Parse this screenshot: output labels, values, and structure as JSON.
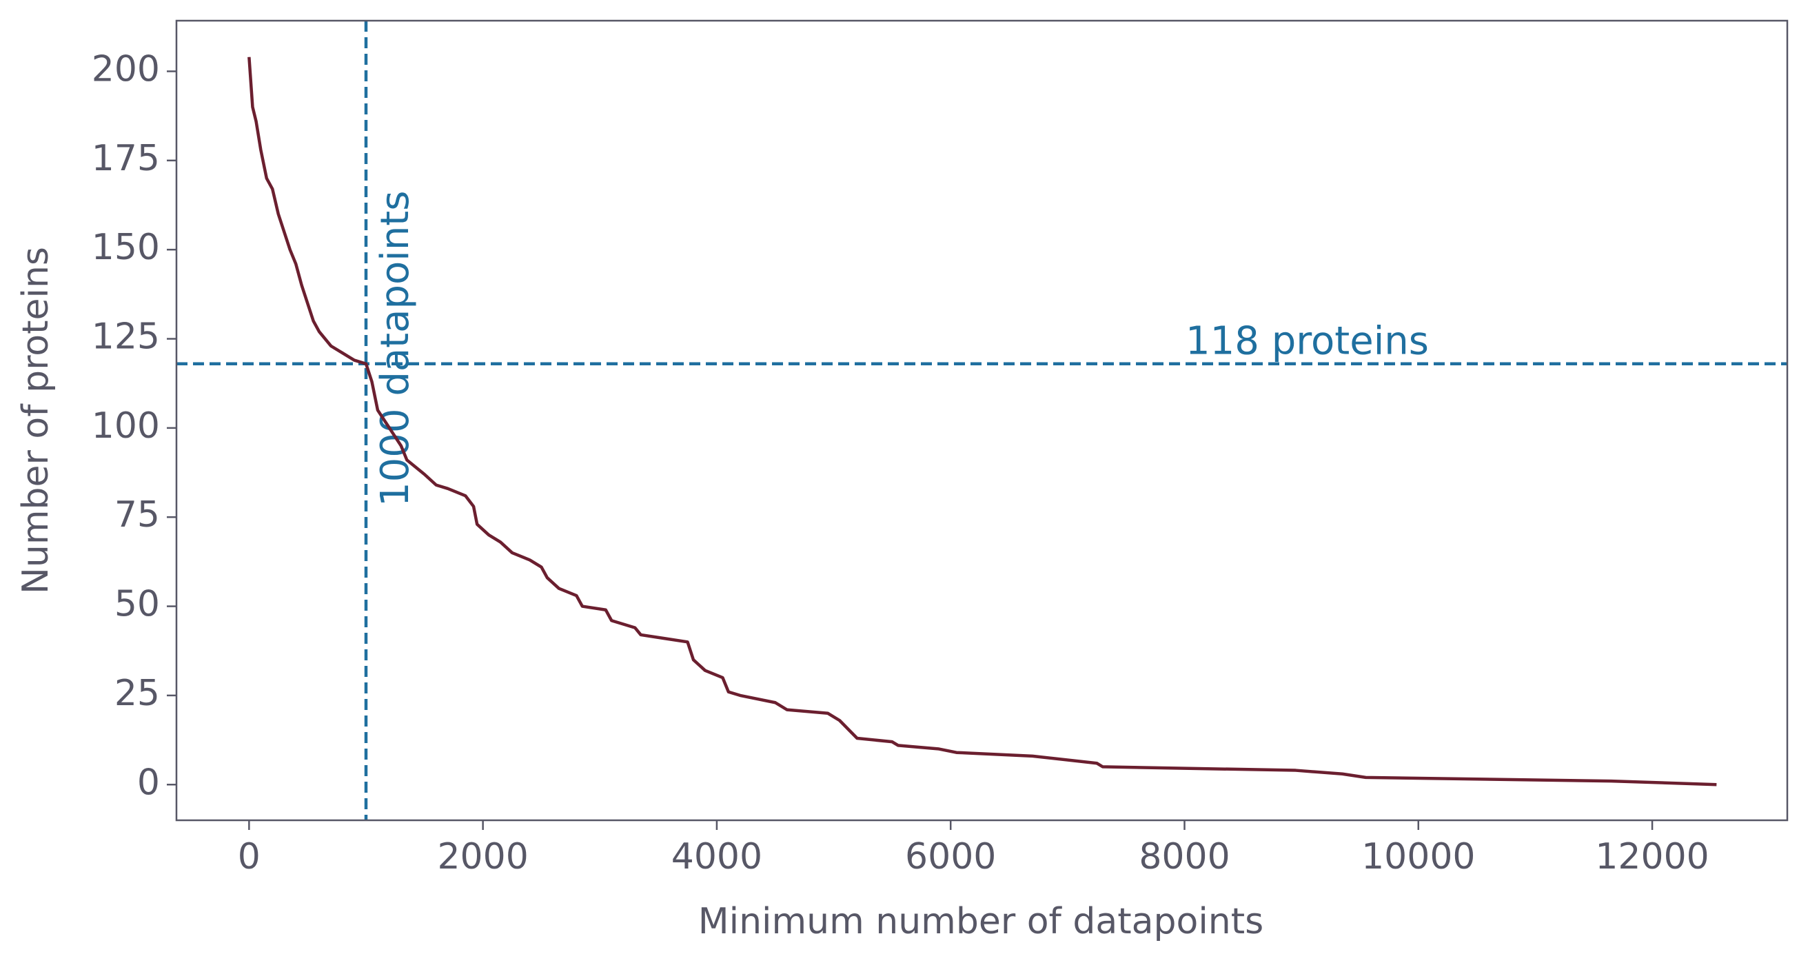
{
  "chart_data": {
    "type": "line",
    "xlabel": "Minimum number of datapoints",
    "ylabel": "Number of proteins",
    "x": [
      0,
      30,
      60,
      100,
      150,
      200,
      250,
      300,
      350,
      400,
      450,
      500,
      550,
      600,
      700,
      800,
      900,
      1000,
      1050,
      1100,
      1200,
      1300,
      1350,
      1500,
      1600,
      1700,
      1850,
      1920,
      1950,
      2050,
      2150,
      2250,
      2400,
      2500,
      2550,
      2650,
      2800,
      2850,
      3050,
      3100,
      3300,
      3350,
      3550,
      3750,
      3800,
      3900,
      4050,
      4100,
      4200,
      4500,
      4600,
      4950,
      5050,
      5200,
      5500,
      5550,
      5900,
      6050,
      6700,
      7250,
      7300,
      8950,
      9350,
      9550,
      11650,
      12550
    ],
    "series": [
      {
        "color": "#6b1f2f",
        "values": [
          204,
          190,
          186,
          178,
          170,
          167,
          160,
          155,
          150,
          146,
          140,
          135,
          130,
          127,
          123,
          121,
          119,
          118,
          113,
          105,
          100,
          95,
          91,
          87,
          84,
          83,
          81,
          78,
          73,
          70,
          68,
          65,
          63,
          61,
          58,
          55,
          53,
          50,
          49,
          46,
          44,
          42,
          41,
          40,
          35,
          32,
          30,
          26,
          25,
          23,
          21,
          20,
          18,
          13,
          12,
          11,
          10,
          9,
          8,
          6,
          5,
          4,
          3,
          2,
          1,
          0
        ]
      }
    ],
    "xlim": [
      -621,
      13155
    ],
    "ylim": [
      -10,
      214.2
    ],
    "xticks": [
      0,
      2000,
      4000,
      6000,
      8000,
      10000,
      12000
    ],
    "yticks": [
      0,
      25,
      50,
      75,
      100,
      125,
      150,
      175,
      200
    ],
    "reference_lines": [
      {
        "x": 1000,
        "text": "1000 datapoints",
        "color": "#1f6f9f"
      },
      {
        "y": 118,
        "text": "118 proteins",
        "color": "#1f6f9f"
      }
    ]
  }
}
